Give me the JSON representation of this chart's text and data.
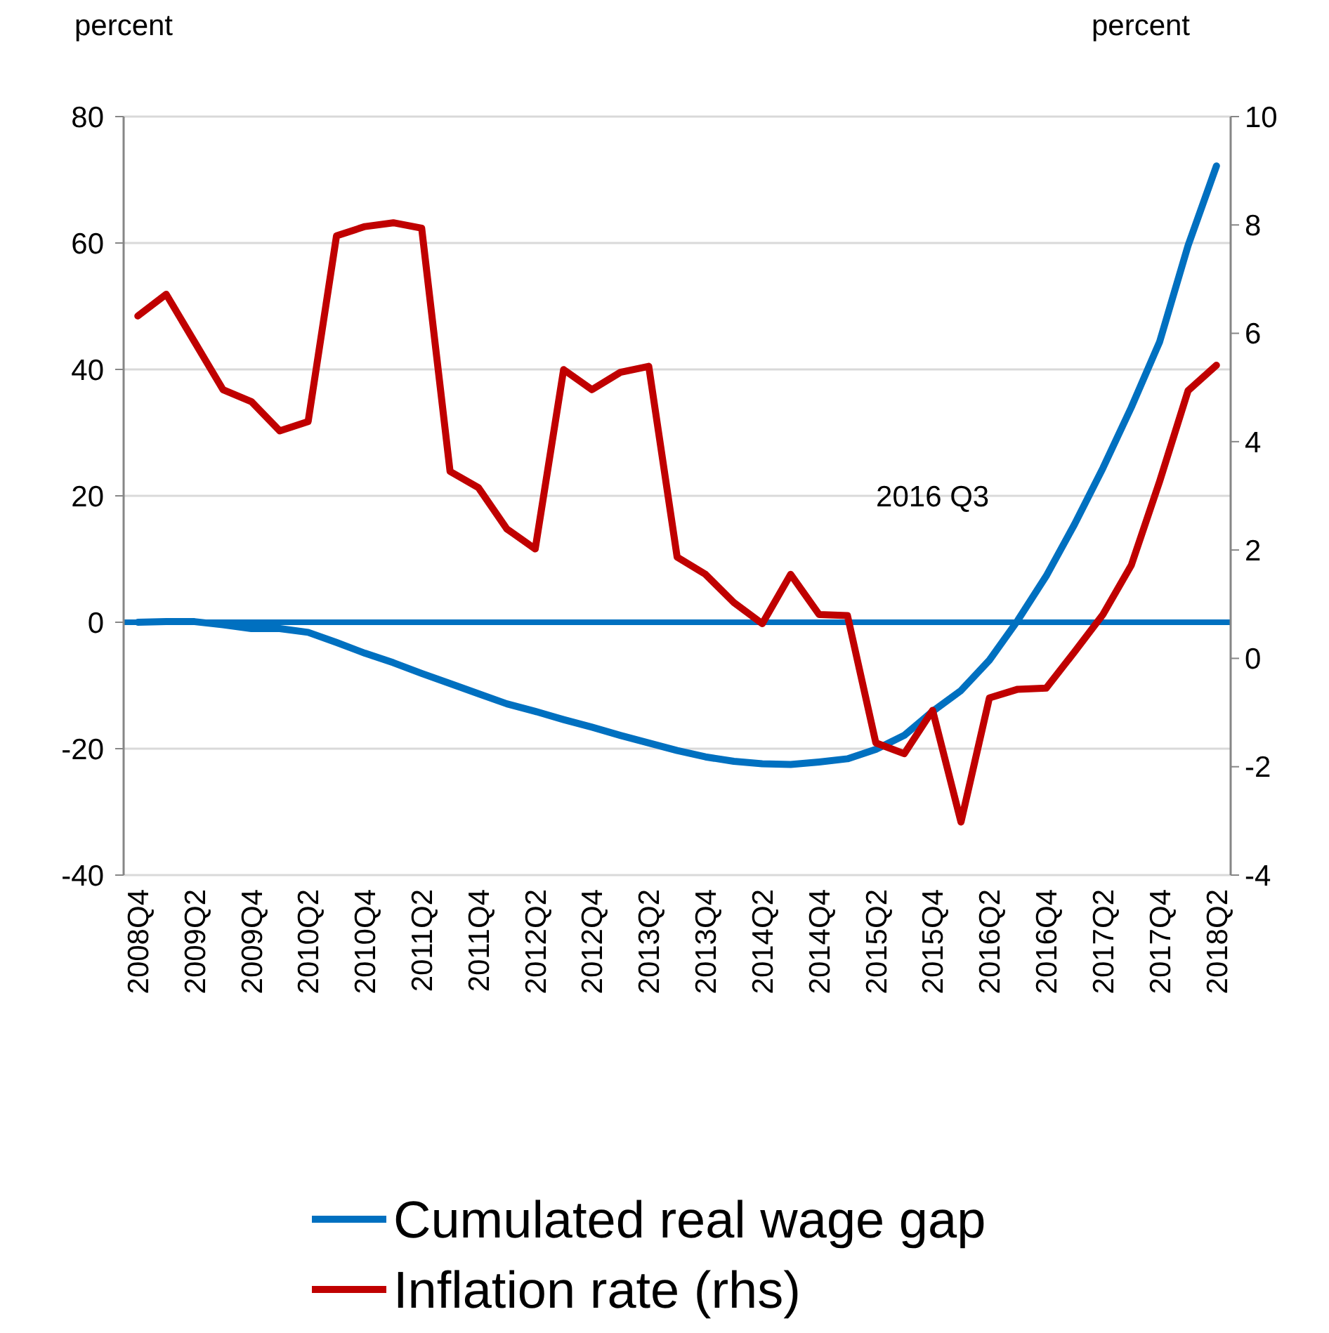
{
  "chart_data": {
    "type": "line",
    "ylabel": "percent",
    "y2label": "percent",
    "categories": [
      "2008Q4",
      null,
      "2009Q2",
      null,
      "2009Q4",
      null,
      "2010Q2",
      null,
      "2010Q4",
      null,
      "2011Q2",
      null,
      "2011Q4",
      null,
      "2012Q2",
      null,
      "2012Q4",
      null,
      "2013Q2",
      null,
      "2013Q4",
      null,
      "2014Q2",
      null,
      "2014Q4",
      null,
      "2015Q2",
      null,
      "2015Q4",
      null,
      "2016Q2",
      null,
      "2016Q4",
      null,
      "2017Q2",
      null,
      "2017Q4",
      null,
      "2018Q2"
    ],
    "series": [
      {
        "name": "Cumulated real wage gap",
        "color": "#0070c0",
        "values": [
          0,
          0.1,
          0.1,
          -0.4,
          -1.0,
          -1.0,
          -1.6,
          -3.2,
          -4.9,
          -6.4,
          -8.1,
          -9.7,
          -11.3,
          -12.9,
          -14.1,
          -15.4,
          -16.6,
          -17.9,
          -19.1,
          -20.3,
          -21.3,
          -22.0,
          -22.4,
          -22.5,
          -22.1,
          -21.6,
          -20.1,
          -17.9,
          -14.1,
          -10.8,
          -6.0,
          0.3,
          7.3,
          15.5,
          24.4,
          34.0,
          44.4,
          59.6,
          72.2
        ]
      },
      {
        "name": "Inflation rate (rhs)",
        "color": "#c00000",
        "axis": "y2",
        "values": [
          6.32,
          6.72,
          5.84,
          4.96,
          4.74,
          4.2,
          4.37,
          7.8,
          7.97,
          8.04,
          7.94,
          3.45,
          3.15,
          2.39,
          2.02,
          5.33,
          4.96,
          5.28,
          5.39,
          1.87,
          1.55,
          1.03,
          0.64,
          1.55,
          0.81,
          0.79,
          -1.56,
          -1.76,
          -0.96,
          -3.02,
          -0.73,
          -0.57,
          -0.55,
          0.12,
          0.81,
          1.72,
          3.27,
          4.94,
          5.41
        ]
      }
    ],
    "ylim": [
      -40,
      80
    ],
    "yticks": [
      -40,
      -20,
      0,
      20,
      40,
      60,
      80
    ],
    "y2lim": [
      -4,
      10
    ],
    "y2ticks": [
      -4,
      -2,
      0,
      2,
      4,
      6,
      8,
      10
    ],
    "ref_lines": [
      {
        "axis": "y",
        "value": 0,
        "color": "#0070c0"
      }
    ],
    "annotations": [
      "2016 Q3"
    ],
    "grid": "y",
    "legend": "bottom",
    "line_style": "solid",
    "marker": "none"
  }
}
